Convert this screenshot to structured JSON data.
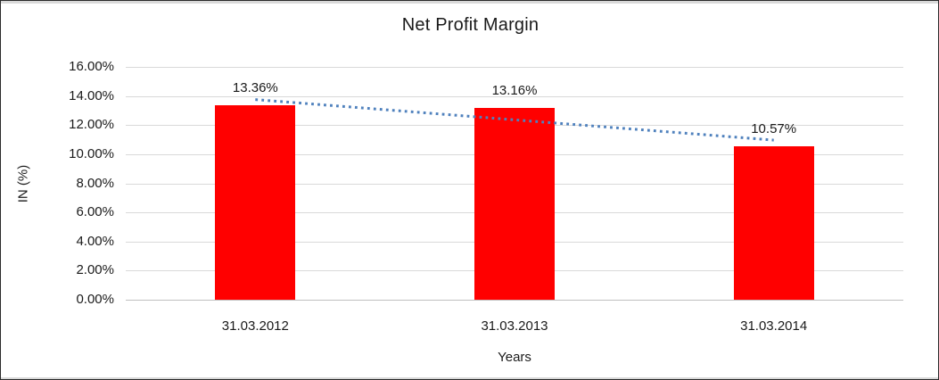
{
  "chart_data": {
    "type": "bar",
    "title": "Net Profit Margin",
    "categories": [
      "31.03.2012",
      "31.03.2013",
      "31.03.2014"
    ],
    "values": [
      13.36,
      13.16,
      10.57
    ],
    "data_labels": [
      "13.36%",
      "13.16%",
      "10.57%"
    ],
    "xlabel": "Years",
    "ylabel": "IN (%)",
    "ylim": [
      0,
      16
    ],
    "ytick_step": 2,
    "ytick_labels": [
      "0.00%",
      "2.00%",
      "4.00%",
      "6.00%",
      "8.00%",
      "10.00%",
      "12.00%",
      "14.00%",
      "16.00%"
    ],
    "grid": true,
    "legend_position": "none",
    "bar_color": "#ff0000",
    "gridline_color": "#d9d9d9",
    "axis_line_color": "#bfbfbf",
    "trendline": {
      "type": "linear",
      "style": "dotted",
      "color": "#4f81bd"
    }
  }
}
